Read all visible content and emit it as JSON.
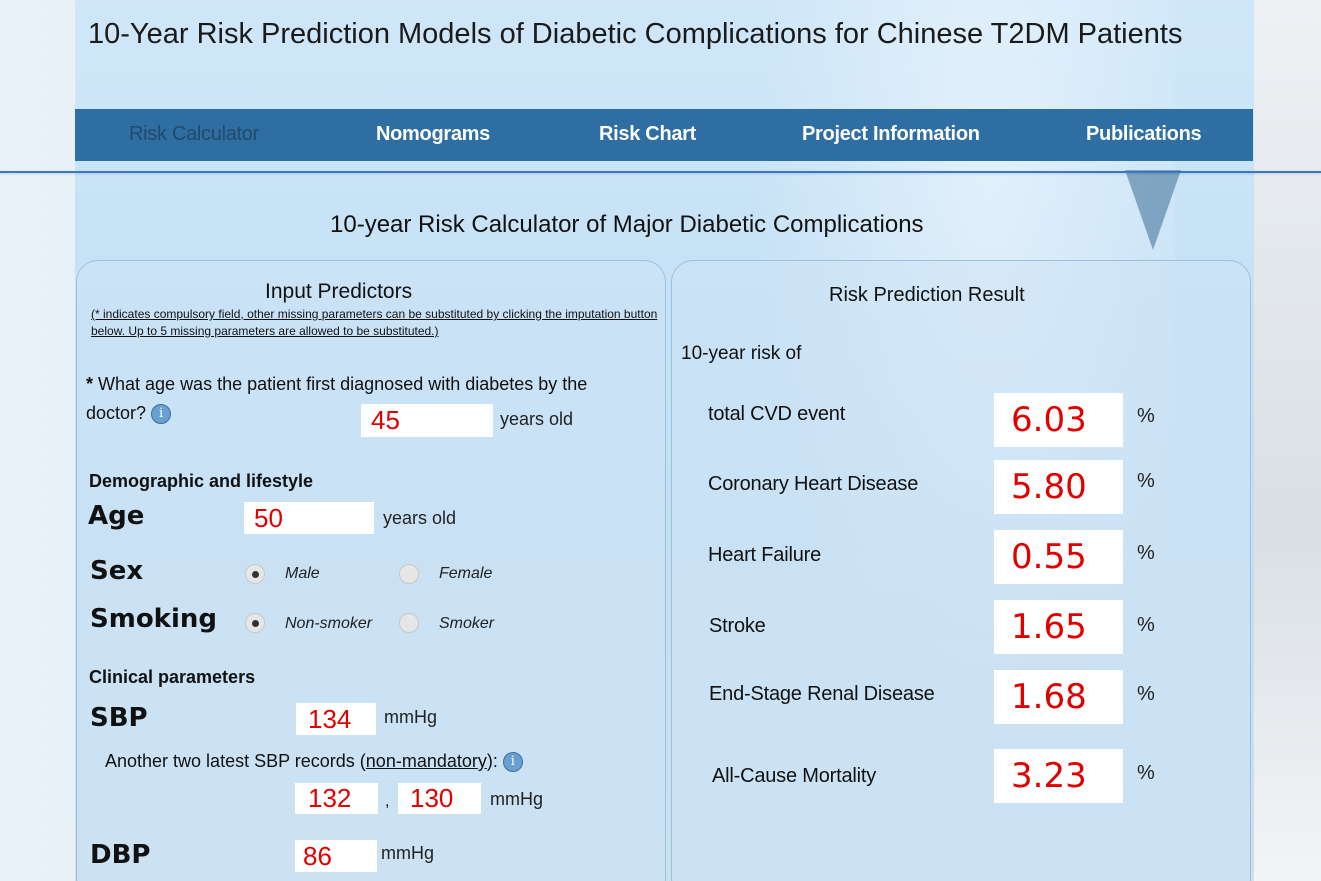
{
  "page_title": "10-Year Risk Prediction Models of Diabetic Complications for Chinese T2DM Patients",
  "nav": {
    "items": [
      {
        "label": "Risk Calculator",
        "active": true
      },
      {
        "label": "Nomograms"
      },
      {
        "label": "Risk Chart"
      },
      {
        "label": "Project Information"
      },
      {
        "label": "Publications"
      }
    ]
  },
  "calculator_title": "10-year Risk Calculator of Major Diabetic Complications",
  "input": {
    "heading": "Input Predictors",
    "note": "(* indicates compulsory field, other missing parameters can be substituted by clicking the imputation button below. Up to 5 missing parameters are allowed to be substituted.)",
    "diag_age": {
      "asterisk": "*",
      "question": " What age was the patient first diagnosed with diabetes by the doctor?",
      "value": "45",
      "unit": "years old"
    },
    "demographic_heading": "Demographic and lifestyle",
    "age": {
      "label": "Age",
      "value": "50",
      "unit": "years old"
    },
    "sex": {
      "label": "Sex",
      "options": [
        "Male",
        "Female"
      ],
      "selected": "Male"
    },
    "smoking": {
      "label": "Smoking",
      "options": [
        "Non-smoker",
        "Smoker"
      ],
      "selected": "Non-smoker"
    },
    "clinical_heading": "Clinical parameters",
    "sbp": {
      "label": "SBP",
      "value": "134",
      "unit": "mmHg"
    },
    "sbp_extra": {
      "text_before": "Another two latest SBP records (",
      "link": "non-mandatory",
      "text_after": "):",
      "value1": "132",
      "separator": ",",
      "value2": "130",
      "unit": "mmHg"
    },
    "dbp": {
      "label": "DBP",
      "value": "86",
      "unit": "mmHg"
    }
  },
  "result": {
    "heading": "Risk Prediction Result",
    "intro": "10-year risk of",
    "unit": "%",
    "rows": [
      {
        "label": "total CVD event",
        "value": "6.03"
      },
      {
        "label": "Coronary Heart Disease",
        "value": "5.80"
      },
      {
        "label": "Heart Failure",
        "value": "0.55"
      },
      {
        "label": "Stroke",
        "value": "1.65"
      },
      {
        "label": "End-Stage Renal Disease",
        "value": "1.68"
      },
      {
        "label": "All-Cause Mortality",
        "value": "3.23"
      }
    ]
  },
  "icons": {
    "info": "info-icon"
  },
  "colors": {
    "nav_bg": "#2e6ea2",
    "value_red": "#e00000"
  }
}
